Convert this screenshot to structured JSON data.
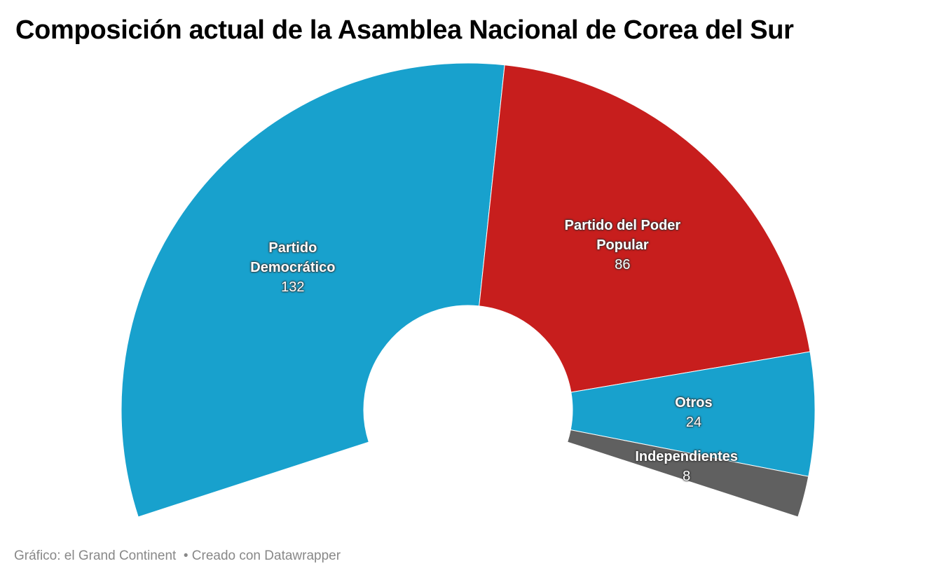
{
  "chart_data": {
    "type": "donut",
    "title": "Composición actual de la Asamblea Nacional de Corea del Sur",
    "categories": [
      "Partido Democrático",
      "Partido del Poder Popular",
      "Otros",
      "Independientes"
    ],
    "values": [
      132,
      86,
      24,
      8
    ],
    "colors": [
      "#18a1cd",
      "#c71e1d",
      "#18a1cd",
      "#606060"
    ],
    "source": "Gráfico: el Grand Continent  • Creado con Datawrapper"
  }
}
